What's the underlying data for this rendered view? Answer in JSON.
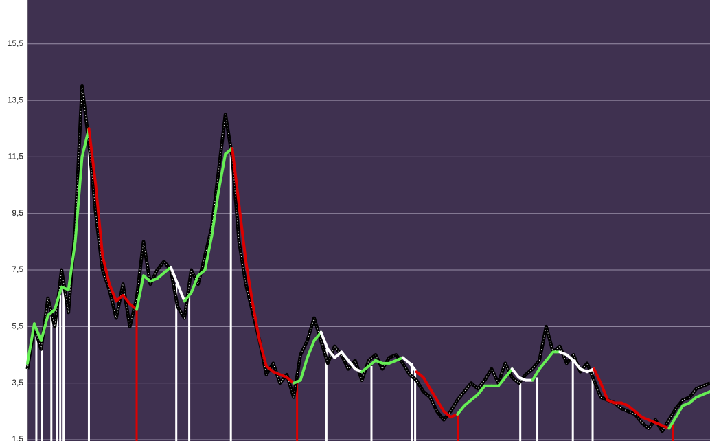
{
  "chart_data": {
    "type": "line",
    "ylim": [
      1.5,
      17.05
    ],
    "xlim": [
      0,
      100
    ],
    "yticks": [
      {
        "value": 1.5,
        "label": "1,5"
      },
      {
        "value": 3.5,
        "label": "3,5"
      },
      {
        "value": 5.5,
        "label": "5,5"
      },
      {
        "value": 7.5,
        "label": "7,5"
      },
      {
        "value": 9.5,
        "label": "9,5"
      },
      {
        "value": 11.5,
        "label": "11,5"
      },
      {
        "value": 13.5,
        "label": "13,5"
      },
      {
        "value": 15.5,
        "label": "15,5"
      }
    ],
    "grid": true,
    "background": "#3f3150",
    "raw": {
      "color": "#000000",
      "values": [
        4.0,
        5.5,
        4.7,
        6.5,
        5.5,
        7.5,
        6.0,
        9.0,
        14.0,
        12.0,
        9.5,
        7.5,
        6.8,
        5.8,
        7.0,
        5.5,
        6.5,
        8.5,
        7.0,
        7.5,
        7.8,
        7.5,
        6.2,
        5.8,
        7.5,
        7.0,
        8.0,
        9.0,
        11.0,
        13.0,
        11.5,
        8.5,
        7.0,
        6.0,
        5.0,
        3.8,
        4.2,
        3.5,
        3.8,
        3.0,
        4.5,
        5.0,
        5.8,
        5.0,
        4.2,
        4.8,
        4.5,
        4.0,
        4.3,
        3.6,
        4.3,
        4.5,
        4.0,
        4.4,
        4.5,
        4.2,
        3.8,
        3.6,
        3.2,
        3.0,
        2.5,
        2.2,
        2.5,
        2.9,
        3.2,
        3.5,
        3.3,
        3.6,
        4.0,
        3.5,
        4.2,
        3.7,
        3.5,
        3.8,
        4.0,
        4.3,
        5.5,
        4.6,
        4.8,
        4.2,
        4.5,
        3.9,
        4.2,
        3.6,
        3.0,
        2.9,
        2.8,
        2.6,
        2.5,
        2.4,
        2.1,
        1.9,
        2.2,
        1.8,
        2.2,
        2.6,
        2.9,
        3.0,
        3.3,
        3.4,
        3.5
      ]
    },
    "smooth": {
      "values": [
        4.2,
        5.6,
        5.0,
        5.9,
        6.1,
        6.9,
        6.8,
        8.5,
        11.5,
        12.5,
        10.5,
        8.0,
        7.0,
        6.4,
        6.6,
        6.3,
        6.1,
        7.3,
        7.1,
        7.2,
        7.4,
        7.6,
        7.0,
        6.4,
        6.7,
        7.3,
        7.5,
        8.7,
        10.3,
        11.6,
        11.8,
        9.8,
        7.8,
        6.3,
        5.0,
        4.1,
        3.9,
        3.8,
        3.7,
        3.5,
        3.6,
        4.4,
        5.0,
        5.3,
        4.7,
        4.4,
        4.6,
        4.3,
        4.0,
        3.9,
        4.1,
        4.3,
        4.2,
        4.2,
        4.3,
        4.4,
        4.2,
        3.9,
        3.7,
        3.3,
        2.9,
        2.5,
        2.3,
        2.4,
        2.7,
        2.9,
        3.1,
        3.4,
        3.4,
        3.4,
        3.7,
        4.0,
        3.7,
        3.6,
        3.6,
        4.0,
        4.3,
        4.6,
        4.6,
        4.5,
        4.3,
        4.0,
        3.9,
        4.0,
        3.5,
        2.9,
        2.8,
        2.8,
        2.7,
        2.5,
        2.3,
        2.2,
        2.1,
        2.0,
        1.9,
        2.3,
        2.7,
        2.8,
        3.0,
        3.1,
        3.2
      ],
      "colors": [
        "#66ee55",
        "#66ee55",
        "#66ee55",
        "#66ee55",
        "#66ee55",
        "#66ee55",
        "#66ee55",
        "#66ee55",
        "#66ee55",
        "#66ee55",
        "#dd0000",
        "#dd0000",
        "#dd0000",
        "#dd0000",
        "#dd0000",
        "#dd0000",
        "#dd0000",
        "#66ee55",
        "#66ee55",
        "#66ee55",
        "#66ee55",
        "#66ee55",
        "#ffffff",
        "#ffffff",
        "#66ee55",
        "#66ee55",
        "#66ee55",
        "#66ee55",
        "#66ee55",
        "#66ee55",
        "#66ee55",
        "#dd0000",
        "#dd0000",
        "#dd0000",
        "#dd0000",
        "#dd0000",
        "#dd0000",
        "#dd0000",
        "#dd0000",
        "#dd0000",
        "#66ee55",
        "#66ee55",
        "#66ee55",
        "#66ee55",
        "#ffffff",
        "#ffffff",
        "#ffffff",
        "#ffffff",
        "#ffffff",
        "#ffffff",
        "#66ee55",
        "#66ee55",
        "#66ee55",
        "#66ee55",
        "#66ee55",
        "#66ee55",
        "#ffffff",
        "#ffffff",
        "#dd0000",
        "#dd0000",
        "#dd0000",
        "#dd0000",
        "#dd0000",
        "#dd0000",
        "#66ee55",
        "#66ee55",
        "#66ee55",
        "#66ee55",
        "#66ee55",
        "#66ee55",
        "#66ee55",
        "#66ee55",
        "#ffffff",
        "#ffffff",
        "#ffffff",
        "#66ee55",
        "#66ee55",
        "#66ee55",
        "#66ee55",
        "#ffffff",
        "#ffffff",
        "#ffffff",
        "#ffffff",
        "#ffffff",
        "#dd0000",
        "#dd0000",
        "#dd0000",
        "#dd0000",
        "#dd0000",
        "#dd0000",
        "#dd0000",
        "#dd0000",
        "#dd0000",
        "#dd0000",
        "#dd0000",
        "#66ee55",
        "#66ee55",
        "#66ee55",
        "#66ee55",
        "#66ee55",
        "#66ee55"
      ]
    },
    "signals": {
      "x": [
        1.3,
        2.1,
        3.5,
        4.3,
        4.8,
        5.3,
        9,
        16,
        21.8,
        23.7,
        29.8,
        39.5,
        43.8,
        50.4,
        56.3,
        56.8,
        63.1,
        72.2,
        74.7,
        79.9,
        82.8,
        94.6
      ],
      "values": [
        5.4,
        5.0,
        6.0,
        6.3,
        6.6,
        6.9,
        12.3,
        6.1,
        7.0,
        6.6,
        11.8,
        3.5,
        4.7,
        4.1,
        4.2,
        4.0,
        2.4,
        3.7,
        3.7,
        4.3,
        4.0,
        2.1
      ],
      "colors": [
        "#ffffff",
        "#ffffff",
        "#ffffff",
        "#ffffff",
        "#ffffff",
        "#ffffff",
        "#ffffff",
        "#dd0000",
        "#ffffff",
        "#ffffff",
        "#ffffff",
        "#dd0000",
        "#ffffff",
        "#ffffff",
        "#ffffff",
        "#ffffff",
        "#dd0000",
        "#ffffff",
        "#ffffff",
        "#ffffff",
        "#ffffff",
        "#dd0000"
      ]
    }
  }
}
